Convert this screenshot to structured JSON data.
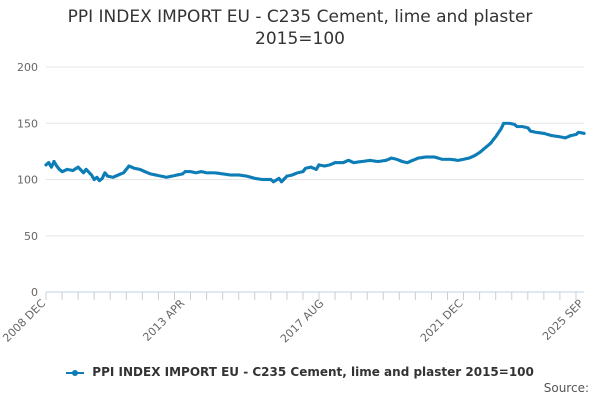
{
  "chart_data": {
    "type": "line",
    "title_lines": [
      "PPI INDEX IMPORT EU - C235 Cement, lime and plaster",
      "2015=100"
    ],
    "xlabel": "",
    "ylabel": "",
    "ylim": [
      0,
      200
    ],
    "yticks": [
      0,
      50,
      100,
      150,
      200
    ],
    "x_start": "2008-12",
    "x_end": "2025-09",
    "x_tick_labels": [
      {
        "date": "2008-12",
        "label": "2008 DEC"
      },
      {
        "date": "2013-04",
        "label": "2013 APR"
      },
      {
        "date": "2017-08",
        "label": "2017 AUG"
      },
      {
        "date": "2021-12",
        "label": "2021 DEC"
      },
      {
        "date": "2025-09",
        "label": "2025 SEP"
      }
    ],
    "grid": true,
    "legend_position": "bottom",
    "series": [
      {
        "name": "PPI INDEX IMPORT EU - C235 Cement, lime and plaster 2015=100",
        "color": "#0d7db7",
        "points": [
          [
            "2008-12",
            113
          ],
          [
            "2009-01",
            115
          ],
          [
            "2009-02",
            111
          ],
          [
            "2009-03",
            116
          ],
          [
            "2009-04",
            112
          ],
          [
            "2009-05",
            109
          ],
          [
            "2009-06",
            107
          ],
          [
            "2009-08",
            109
          ],
          [
            "2009-10",
            108
          ],
          [
            "2009-12",
            111
          ],
          [
            "2010-02",
            106
          ],
          [
            "2010-03",
            109
          ],
          [
            "2010-05",
            104
          ],
          [
            "2010-06",
            100
          ],
          [
            "2010-07",
            102
          ],
          [
            "2010-08",
            99
          ],
          [
            "2010-09",
            101
          ],
          [
            "2010-10",
            106
          ],
          [
            "2010-11",
            103
          ],
          [
            "2011-01",
            102
          ],
          [
            "2011-03",
            104
          ],
          [
            "2011-05",
            106
          ],
          [
            "2011-06",
            109
          ],
          [
            "2011-07",
            112
          ],
          [
            "2011-09",
            110
          ],
          [
            "2011-11",
            109
          ],
          [
            "2012-01",
            107
          ],
          [
            "2012-03",
            105
          ],
          [
            "2012-05",
            104
          ],
          [
            "2012-07",
            103
          ],
          [
            "2012-09",
            102
          ],
          [
            "2012-11",
            103
          ],
          [
            "2013-01",
            104
          ],
          [
            "2013-03",
            105
          ],
          [
            "2013-04",
            107
          ],
          [
            "2013-06",
            107
          ],
          [
            "2013-08",
            106
          ],
          [
            "2013-10",
            107
          ],
          [
            "2013-12",
            106
          ],
          [
            "2014-03",
            106
          ],
          [
            "2014-06",
            105
          ],
          [
            "2014-09",
            104
          ],
          [
            "2014-12",
            104
          ],
          [
            "2015-03",
            103
          ],
          [
            "2015-06",
            101
          ],
          [
            "2015-09",
            100
          ],
          [
            "2015-12",
            100
          ],
          [
            "2016-01",
            98
          ],
          [
            "2016-03",
            101
          ],
          [
            "2016-04",
            98
          ],
          [
            "2016-06",
            103
          ],
          [
            "2016-08",
            104
          ],
          [
            "2016-10",
            106
          ],
          [
            "2016-12",
            107
          ],
          [
            "2017-01",
            110
          ],
          [
            "2017-03",
            111
          ],
          [
            "2017-05",
            109
          ],
          [
            "2017-06",
            113
          ],
          [
            "2017-08",
            112
          ],
          [
            "2017-10",
            113
          ],
          [
            "2017-12",
            115
          ],
          [
            "2018-03",
            115
          ],
          [
            "2018-05",
            117
          ],
          [
            "2018-07",
            115
          ],
          [
            "2018-10",
            116
          ],
          [
            "2019-01",
            117
          ],
          [
            "2019-04",
            116
          ],
          [
            "2019-07",
            117
          ],
          [
            "2019-09",
            119
          ],
          [
            "2019-11",
            118
          ],
          [
            "2020-01",
            116
          ],
          [
            "2020-03",
            115
          ],
          [
            "2020-05",
            117
          ],
          [
            "2020-07",
            119
          ],
          [
            "2020-10",
            120
          ],
          [
            "2021-01",
            120
          ],
          [
            "2021-04",
            118
          ],
          [
            "2021-07",
            118
          ],
          [
            "2021-10",
            117
          ],
          [
            "2021-12",
            118
          ],
          [
            "2022-02",
            119
          ],
          [
            "2022-04",
            121
          ],
          [
            "2022-06",
            124
          ],
          [
            "2022-08",
            128
          ],
          [
            "2022-10",
            132
          ],
          [
            "2022-12",
            138
          ],
          [
            "2023-02",
            145
          ],
          [
            "2023-03",
            150
          ],
          [
            "2023-05",
            150
          ],
          [
            "2023-07",
            149
          ],
          [
            "2023-08",
            147
          ],
          [
            "2023-10",
            147
          ],
          [
            "2023-12",
            146
          ],
          [
            "2024-01",
            143
          ],
          [
            "2024-03",
            142
          ],
          [
            "2024-06",
            141
          ],
          [
            "2024-09",
            139
          ],
          [
            "2024-12",
            138
          ],
          [
            "2025-02",
            137
          ],
          [
            "2025-04",
            139
          ],
          [
            "2025-06",
            140
          ],
          [
            "2025-07",
            142
          ],
          [
            "2025-09",
            141
          ]
        ]
      }
    ]
  },
  "legend": {
    "label": "PPI INDEX IMPORT EU - C235 Cement, lime and plaster 2015=100"
  },
  "footer": {
    "source_label": "Source:"
  }
}
